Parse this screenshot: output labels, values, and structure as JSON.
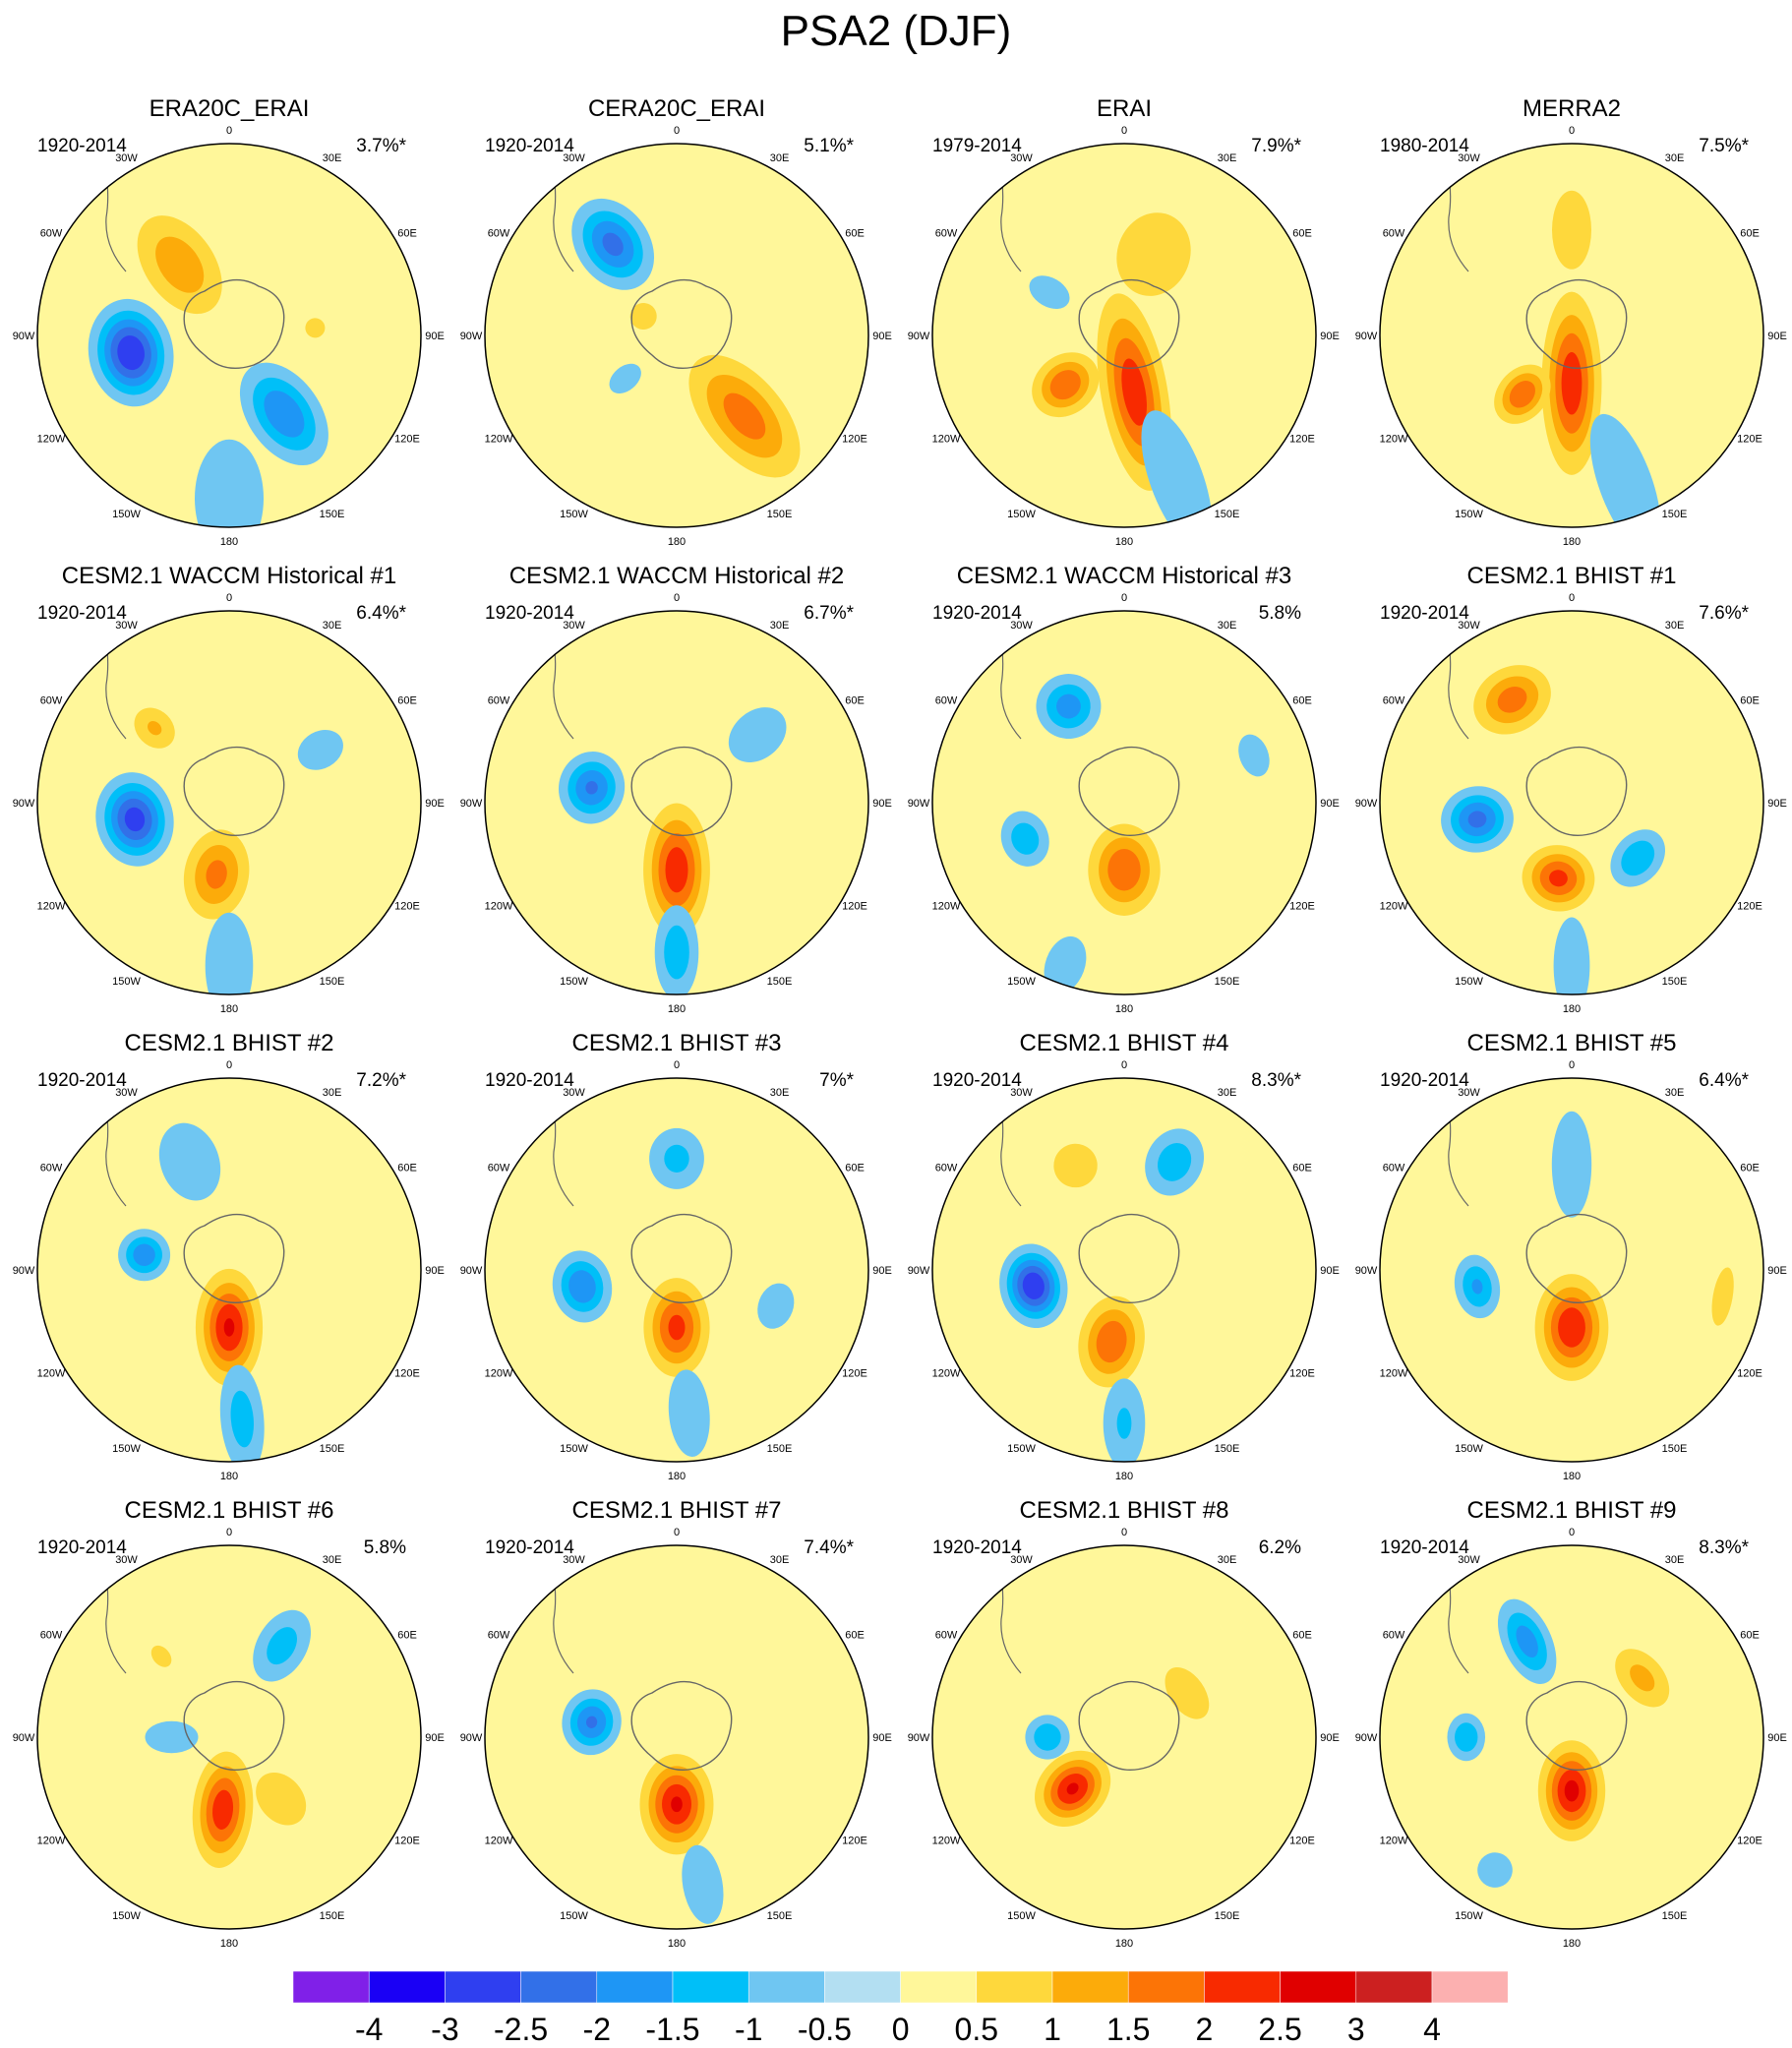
{
  "chart_data": {
    "type": "polar-contour-map",
    "title": "PSA2 (DJF)",
    "projection": "South polar stereographic",
    "lon_labels": [
      "0",
      "30E",
      "60E",
      "90E",
      "120E",
      "150E",
      "180",
      "150W",
      "120W",
      "90W",
      "60W",
      "30W"
    ],
    "colorbar": {
      "levels": [
        "-4",
        "-3",
        "-2.5",
        "-2",
        "-1.5",
        "-1",
        "-0.5",
        "0",
        "0.5",
        "1",
        "1.5",
        "2",
        "2.5",
        "3",
        "4"
      ],
      "colors": [
        "#8020e8",
        "#1a00f5",
        "#2f3ff0",
        "#3270e8",
        "#1e96f5",
        "#00bff8",
        "#6fc6f2",
        "#b3dff2",
        "#fff79a",
        "#fed83c",
        "#fcab0a",
        "#fc7406",
        "#f82a00",
        "#e00000",
        "#cc2020",
        "#fcb0b0"
      ]
    },
    "panels": [
      {
        "title": "ERA20C_ERAI",
        "period": "1920-2014",
        "variance": "3.7%*",
        "anomalies": [
          {
            "lon": -35,
            "r": 0.45,
            "a": 1.4,
            "w": 0.35,
            "h": 0.22
          },
          {
            "lon": -100,
            "r": 0.52,
            "a": -3.0,
            "w": 0.25,
            "h": 0.32
          },
          {
            "lon": 145,
            "r": 0.5,
            "a": -2.0,
            "w": 0.35,
            "h": 0.22
          },
          {
            "lon": 85,
            "r": 0.45,
            "a": 0.6,
            "w": 0.1,
            "h": 0.1
          },
          {
            "lon": 180,
            "r": 0.85,
            "a": -0.6,
            "w": 0.6,
            "h": 0.35
          }
        ]
      },
      {
        "title": "CERA20C_ERAI",
        "period": "1920-2014",
        "variance": "5.1%*",
        "anomalies": [
          {
            "lon": -35,
            "r": 0.58,
            "a": -2.2,
            "w": 0.3,
            "h": 0.22
          },
          {
            "lon": 140,
            "r": 0.55,
            "a": 1.8,
            "w": 0.45,
            "h": 0.24
          },
          {
            "lon": -60,
            "r": 0.2,
            "a": 0.8,
            "w": 0.1,
            "h": 0.1
          },
          {
            "lon": -130,
            "r": 0.35,
            "a": -0.7,
            "w": 0.15,
            "h": 0.1
          },
          {
            "lon": 20,
            "r": 0.85,
            "a": 0.4,
            "w": 0.5,
            "h": 0.25
          }
        ]
      },
      {
        "title": "ERAI",
        "period": "1979-2014",
        "variance": "7.9%*",
        "anomalies": [
          {
            "lon": 170,
            "r": 0.3,
            "a": 2.4,
            "w": 0.6,
            "h": 0.2
          },
          {
            "lon": -130,
            "r": 0.4,
            "a": 2.0,
            "w": 0.22,
            "h": 0.18
          },
          {
            "lon": 160,
            "r": 0.8,
            "a": -0.8,
            "w": 0.55,
            "h": 0.2
          },
          {
            "lon": -60,
            "r": 0.45,
            "a": -0.7,
            "w": 0.18,
            "h": 0.12
          },
          {
            "lon": 20,
            "r": 0.45,
            "a": 0.7,
            "w": 0.35,
            "h": 0.3
          }
        ]
      },
      {
        "title": "MERRA2",
        "period": "1980-2014",
        "variance": "7.5%*",
        "anomalies": [
          {
            "lon": 180,
            "r": 0.25,
            "a": 2.4,
            "w": 0.55,
            "h": 0.18
          },
          {
            "lon": -140,
            "r": 0.4,
            "a": 2.0,
            "w": 0.2,
            "h": 0.15
          },
          {
            "lon": 160,
            "r": 0.82,
            "a": -0.8,
            "w": 0.55,
            "h": 0.2
          },
          {
            "lon": 0,
            "r": 0.55,
            "a": 0.6,
            "w": 0.4,
            "h": 0.2
          }
        ]
      },
      {
        "title": "CESM2.1 WACCM Historical #1",
        "period": "1920-2014",
        "variance": "6.4%*",
        "anomalies": [
          {
            "lon": -100,
            "r": 0.5,
            "a": -2.8,
            "w": 0.23,
            "h": 0.28
          },
          {
            "lon": -170,
            "r": 0.38,
            "a": 1.7,
            "w": 0.28,
            "h": 0.2
          },
          {
            "lon": -45,
            "r": 0.55,
            "a": 1.1,
            "w": 0.15,
            "h": 0.12
          },
          {
            "lon": 60,
            "r": 0.55,
            "a": -0.8,
            "w": 0.18,
            "h": 0.14
          },
          {
            "lon": 180,
            "r": 0.85,
            "a": -0.8,
            "w": 0.4,
            "h": 0.18
          }
        ]
      },
      {
        "title": "CESM2.1 WACCM Historical #2",
        "period": "1920-2014",
        "variance": "6.7%*",
        "anomalies": [
          {
            "lon": -80,
            "r": 0.45,
            "a": -2.1,
            "w": 0.2,
            "h": 0.22
          },
          {
            "lon": 180,
            "r": 0.35,
            "a": 2.4,
            "w": 0.4,
            "h": 0.2
          },
          {
            "lon": 180,
            "r": 0.78,
            "a": -1.4,
            "w": 0.3,
            "h": 0.14
          },
          {
            "lon": 50,
            "r": 0.55,
            "a": -0.8,
            "w": 0.24,
            "h": 0.18
          }
        ]
      },
      {
        "title": "CESM2.1 WACCM Historical #3",
        "period": "1920-2014",
        "variance": "5.8%",
        "anomalies": [
          {
            "lon": -30,
            "r": 0.58,
            "a": -1.8,
            "w": 0.2,
            "h": 0.2
          },
          {
            "lon": -110,
            "r": 0.55,
            "a": -1.4,
            "w": 0.15,
            "h": 0.18
          },
          {
            "lon": 180,
            "r": 0.35,
            "a": 2.0,
            "w": 0.28,
            "h": 0.22
          },
          {
            "lon": 70,
            "r": 0.72,
            "a": -0.7,
            "w": 0.12,
            "h": 0.18
          },
          {
            "lon": -160,
            "r": 0.9,
            "a": -0.6,
            "w": 0.3,
            "h": 0.2
          }
        ]
      },
      {
        "title": "CESM2.1 BHIST #1",
        "period": "1920-2014",
        "variance": "7.6%*",
        "anomalies": [
          {
            "lon": -30,
            "r": 0.62,
            "a": 1.8,
            "w": 0.2,
            "h": 0.25
          },
          {
            "lon": -100,
            "r": 0.5,
            "a": -2.2,
            "w": 0.22,
            "h": 0.2
          },
          {
            "lon": -170,
            "r": 0.4,
            "a": 2.2,
            "w": 0.2,
            "h": 0.22
          },
          {
            "lon": 130,
            "r": 0.45,
            "a": -1.5,
            "w": 0.15,
            "h": 0.2
          },
          {
            "lon": 180,
            "r": 0.85,
            "a": -0.7,
            "w": 0.4,
            "h": 0.15
          }
        ]
      },
      {
        "title": "CESM2.1 BHIST #2",
        "period": "1920-2014",
        "variance": "7.2%*",
        "anomalies": [
          {
            "lon": -80,
            "r": 0.45,
            "a": -1.9,
            "w": 0.16,
            "h": 0.16
          },
          {
            "lon": 180,
            "r": 0.3,
            "a": 2.6,
            "w": 0.35,
            "h": 0.2
          },
          {
            "lon": 175,
            "r": 0.78,
            "a": -1.3,
            "w": 0.35,
            "h": 0.14
          },
          {
            "lon": -20,
            "r": 0.6,
            "a": -0.8,
            "w": 0.3,
            "h": 0.22
          },
          {
            "lon": 60,
            "r": 0.6,
            "a": 0.5,
            "w": 0.12,
            "h": 0.12
          }
        ]
      },
      {
        "title": "CESM2.1 BHIST #3",
        "period": "1920-2014",
        "variance": "7%*",
        "anomalies": [
          {
            "lon": -100,
            "r": 0.5,
            "a": -2.0,
            "w": 0.18,
            "h": 0.22
          },
          {
            "lon": 180,
            "r": 0.3,
            "a": 2.2,
            "w": 0.3,
            "h": 0.2
          },
          {
            "lon": 175,
            "r": 0.75,
            "a": -1.0,
            "w": 0.3,
            "h": 0.14
          },
          {
            "lon": 0,
            "r": 0.58,
            "a": -1.2,
            "w": 0.2,
            "h": 0.18
          },
          {
            "lon": 110,
            "r": 0.55,
            "a": -1.0,
            "w": 0.12,
            "h": 0.16
          }
        ]
      },
      {
        "title": "CESM2.1 BHIST #4",
        "period": "1920-2014",
        "variance": "8.3%*",
        "anomalies": [
          {
            "lon": -100,
            "r": 0.48,
            "a": -3.0,
            "w": 0.2,
            "h": 0.25
          },
          {
            "lon": -170,
            "r": 0.38,
            "a": 2.0,
            "w": 0.28,
            "h": 0.2
          },
          {
            "lon": -25,
            "r": 0.6,
            "a": 1.0,
            "w": 0.15,
            "h": 0.15
          },
          {
            "lon": 25,
            "r": 0.62,
            "a": -1.4,
            "w": 0.22,
            "h": 0.18
          },
          {
            "lon": 180,
            "r": 0.8,
            "a": -1.1,
            "w": 0.3,
            "h": 0.14
          }
        ]
      },
      {
        "title": "CESM2.1 BHIST #5",
        "period": "1920-2014",
        "variance": "6.4%*",
        "anomalies": [
          {
            "lon": -100,
            "r": 0.5,
            "a": -1.6,
            "w": 0.14,
            "h": 0.2
          },
          {
            "lon": 180,
            "r": 0.3,
            "a": 2.5,
            "w": 0.32,
            "h": 0.22
          },
          {
            "lon": 0,
            "r": 0.55,
            "a": -0.8,
            "w": 0.4,
            "h": 0.15
          },
          {
            "lon": 100,
            "r": 0.8,
            "a": 0.6,
            "w": 0.1,
            "h": 0.3
          }
        ]
      },
      {
        "title": "CESM2.1 BHIST #6",
        "period": "1920-2014",
        "variance": "5.8%",
        "anomalies": [
          {
            "lon": -175,
            "r": 0.38,
            "a": 2.4,
            "w": 0.35,
            "h": 0.18
          },
          {
            "lon": 140,
            "r": 0.42,
            "a": 1.0,
            "w": 0.2,
            "h": 0.15
          },
          {
            "lon": 30,
            "r": 0.55,
            "a": -1.3,
            "w": 0.25,
            "h": 0.16
          },
          {
            "lon": -90,
            "r": 0.3,
            "a": -0.8,
            "w": 0.2,
            "h": 0.12
          },
          {
            "lon": -40,
            "r": 0.55,
            "a": 0.7,
            "w": 0.1,
            "h": 0.07
          }
        ]
      },
      {
        "title": "CESM2.1 BHIST #7",
        "period": "1920-2014",
        "variance": "7.4%*",
        "anomalies": [
          {
            "lon": -80,
            "r": 0.45,
            "a": -2.1,
            "w": 0.18,
            "h": 0.2
          },
          {
            "lon": 180,
            "r": 0.35,
            "a": 2.6,
            "w": 0.3,
            "h": 0.22
          },
          {
            "lon": 170,
            "r": 0.78,
            "a": -0.8,
            "w": 0.3,
            "h": 0.15
          },
          {
            "lon": 40,
            "r": 0.55,
            "a": 0.5,
            "w": 0.2,
            "h": 0.2
          }
        ]
      },
      {
        "title": "CESM2.1 BHIST #8",
        "period": "1920-2014",
        "variance": "6.2%",
        "anomalies": [
          {
            "lon": -135,
            "r": 0.38,
            "a": 2.6,
            "w": 0.25,
            "h": 0.2
          },
          {
            "lon": -90,
            "r": 0.4,
            "a": -1.5,
            "w": 0.14,
            "h": 0.14
          },
          {
            "lon": 55,
            "r": 0.4,
            "a": 1.0,
            "w": 0.12,
            "h": 0.2
          },
          {
            "lon": 180,
            "r": 0.7,
            "a": 0.4,
            "w": 0.25,
            "h": 0.15
          }
        ]
      },
      {
        "title": "CESM2.1 BHIST #9",
        "period": "1920-2014",
        "variance": "8.3%*",
        "anomalies": [
          {
            "lon": -25,
            "r": 0.55,
            "a": -1.8,
            "w": 0.28,
            "h": 0.15
          },
          {
            "lon": -90,
            "r": 0.55,
            "a": -1.5,
            "w": 0.12,
            "h": 0.15
          },
          {
            "lon": 180,
            "r": 0.28,
            "a": 2.7,
            "w": 0.3,
            "h": 0.2
          },
          {
            "lon": 50,
            "r": 0.48,
            "a": 1.2,
            "w": 0.14,
            "h": 0.22
          },
          {
            "lon": -150,
            "r": 0.8,
            "a": -1.0,
            "w": 0.12,
            "h": 0.12
          }
        ]
      }
    ]
  }
}
